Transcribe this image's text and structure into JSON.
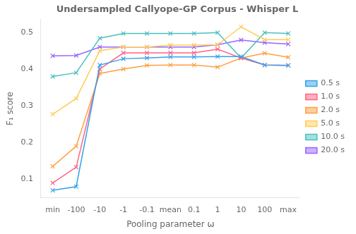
{
  "chart_data": {
    "type": "line",
    "title": "Undersampled Callyope-GP Corpus - Whisper L",
    "xlabel": "Pooling parameter ω",
    "ylabel": "F₁ score",
    "categories": [
      "min",
      "-100",
      "-10",
      "-1",
      "-0.1",
      "mean",
      "0.1",
      "1",
      "10",
      "100",
      "max"
    ],
    "series": [
      {
        "name": "0.5 s",
        "values": [
          0.07,
          0.08,
          0.411,
          0.428,
          0.43,
          0.433,
          0.433,
          0.434,
          0.434,
          0.411,
          0.41
        ]
      },
      {
        "name": "1.0 s",
        "values": [
          0.09,
          0.133,
          0.4,
          0.444,
          0.444,
          0.444,
          0.444,
          0.454,
          0.43,
          0.411,
          0.41
        ]
      },
      {
        "name": "2.0 s",
        "values": [
          0.135,
          0.19,
          0.388,
          0.4,
          0.41,
          0.411,
          0.411,
          0.405,
          0.43,
          0.443,
          0.432
        ]
      },
      {
        "name": "5.0 s",
        "values": [
          0.277,
          0.32,
          0.45,
          0.46,
          0.46,
          0.465,
          0.465,
          0.466,
          0.515,
          0.48,
          0.48
        ]
      },
      {
        "name": "10.0 s",
        "values": [
          0.38,
          0.39,
          0.484,
          0.497,
          0.497,
          0.497,
          0.497,
          0.499,
          0.43,
          0.499,
          0.497
        ]
      },
      {
        "name": "20.0 s",
        "values": [
          0.436,
          0.437,
          0.46,
          0.46,
          0.46,
          0.46,
          0.46,
          0.466,
          0.479,
          0.472,
          0.468
        ]
      }
    ],
    "ylim": [
      0.05,
      0.535
    ],
    "yticks": [
      0.1,
      0.2,
      0.3,
      0.4,
      0.5
    ],
    "marker": "x",
    "legend": "right",
    "grid": false
  }
}
